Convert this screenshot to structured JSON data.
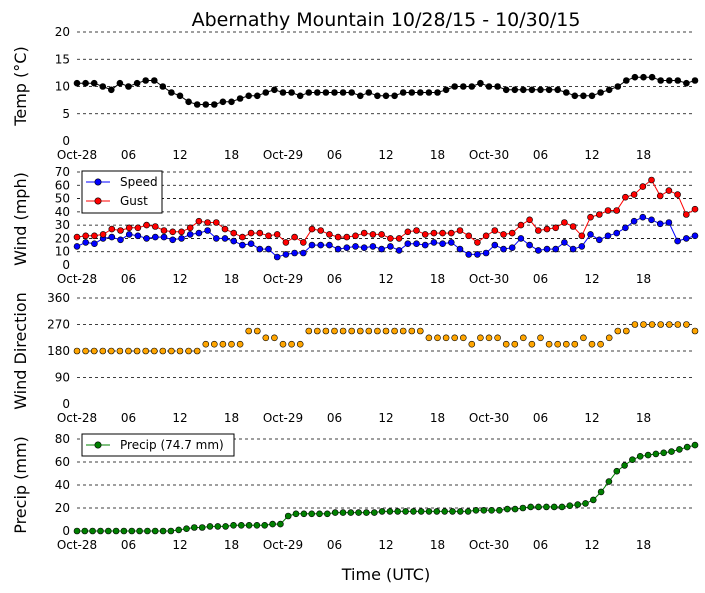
{
  "title": "Abernathy Mountain 10/28/15 - 10/30/15",
  "xlabel": "Time (UTC)",
  "x_tick_labels": [
    "Oct-28",
    "06",
    "12",
    "18",
    "Oct-29",
    "06",
    "12",
    "18",
    "Oct-30",
    "06",
    "12",
    "18"
  ],
  "x_tick_hours": [
    0,
    6,
    12,
    18,
    24,
    30,
    36,
    42,
    48,
    54,
    60,
    66
  ],
  "x_range_hours": [
    0,
    72
  ],
  "colors": {
    "temp": "#000000",
    "speed": "#0000ff",
    "gust": "#ff0000",
    "direction": "#ffa500",
    "precip": "#008000"
  },
  "chart_data": [
    {
      "type": "line",
      "name": "temp",
      "ylabel": "Temp (°C)",
      "ylim": [
        0,
        20
      ],
      "yticks": [
        "0",
        "5",
        "10",
        "15",
        "20"
      ],
      "series": [
        {
          "name": "Temp",
          "color": "#000000",
          "values": [
            10.6,
            10.6,
            10.6,
            10.0,
            9.4,
            10.6,
            10.0,
            10.6,
            11.1,
            11.1,
            10.0,
            8.9,
            8.3,
            7.2,
            6.7,
            6.7,
            6.7,
            7.2,
            7.2,
            7.8,
            8.3,
            8.3,
            8.9,
            9.4,
            8.9,
            8.9,
            8.3,
            8.9,
            8.9,
            8.9,
            8.9,
            8.9,
            8.9,
            8.3,
            8.9,
            8.3,
            8.3,
            8.3,
            8.9,
            8.9,
            8.9,
            8.9,
            8.9,
            9.4,
            10.0,
            10.0,
            10.0,
            10.6,
            10.0,
            10.0,
            9.4,
            9.4,
            9.4,
            9.4,
            9.4,
            9.4,
            9.4,
            8.9,
            8.3,
            8.3,
            8.3,
            8.9,
            9.4,
            10.0,
            11.1,
            11.7,
            11.7,
            11.7,
            11.1,
            11.1,
            11.1,
            10.6,
            11.1
          ]
        }
      ]
    },
    {
      "type": "line",
      "name": "wind",
      "ylabel": "Wind (mph)",
      "ylim": [
        0,
        70
      ],
      "yticks": [
        "0",
        "10",
        "20",
        "30",
        "40",
        "50",
        "60",
        "70"
      ],
      "legend_location": "upper-left",
      "series": [
        {
          "name": "Speed",
          "color": "#0000ff",
          "values": [
            14,
            17,
            16,
            20,
            21,
            19,
            23,
            22,
            20,
            21,
            21,
            19,
            20,
            23,
            24,
            26,
            20,
            20,
            18,
            15,
            16,
            12,
            12,
            6,
            8,
            9,
            9,
            15,
            15,
            15,
            12,
            13,
            14,
            13,
            14,
            12,
            14,
            11,
            16,
            16,
            15,
            17,
            16,
            17,
            12,
            8,
            8,
            9,
            15,
            12,
            13,
            20,
            15,
            11,
            12,
            12,
            17,
            12,
            14,
            23,
            19,
            22,
            24,
            28,
            33,
            36,
            34,
            31,
            32,
            18,
            20,
            22
          ]
        },
        {
          "name": "Gust",
          "color": "#ff0000",
          "values": [
            21,
            22,
            22,
            23,
            27,
            26,
            28,
            28,
            30,
            29,
            26,
            25,
            25,
            28,
            33,
            32,
            32,
            27,
            24,
            21,
            24,
            24,
            22,
            23,
            17,
            21,
            17,
            27,
            26,
            23,
            21,
            21,
            22,
            24,
            23,
            23,
            20,
            20,
            25,
            26,
            23,
            24,
            24,
            24,
            26,
            22,
            17,
            22,
            26,
            23,
            24,
            30,
            34,
            26,
            27,
            28,
            32,
            29,
            22,
            36,
            38,
            41,
            41,
            51,
            53,
            59,
            64,
            52,
            56,
            53,
            38,
            42
          ]
        }
      ]
    },
    {
      "type": "scatter",
      "name": "direction",
      "ylabel": "Wind Direction",
      "ylim": [
        0,
        360
      ],
      "yticks": [
        "0",
        "90",
        "180",
        "270",
        "360"
      ],
      "series": [
        {
          "name": "Direction",
          "color": "#ffa500",
          "values": [
            180,
            180,
            180,
            180,
            180,
            180,
            180,
            180,
            180,
            180,
            180,
            180,
            180,
            180,
            180,
            203,
            203,
            203,
            203,
            203,
            248,
            248,
            225,
            225,
            203,
            203,
            203,
            248,
            248,
            248,
            248,
            248,
            248,
            248,
            248,
            248,
            248,
            248,
            248,
            248,
            248,
            225,
            225,
            225,
            225,
            225,
            203,
            225,
            225,
            225,
            203,
            203,
            225,
            203,
            225,
            203,
            203,
            203,
            203,
            225,
            203,
            203,
            225,
            248,
            248,
            270,
            270,
            270,
            270,
            270,
            270,
            270,
            248
          ]
        }
      ]
    },
    {
      "type": "line",
      "name": "precip",
      "ylabel": "Precip (mm)",
      "ylim": [
        0,
        80
      ],
      "yticks": [
        "0",
        "20",
        "40",
        "60",
        "80"
      ],
      "legend_location": "upper-left",
      "series": [
        {
          "name": "Precip (74.7 mm)",
          "color": "#008000",
          "values": [
            0,
            0,
            0,
            0,
            0,
            0,
            0,
            0,
            0,
            0,
            0,
            0,
            0,
            1,
            2,
            3,
            3,
            4,
            4,
            4,
            5,
            5,
            5,
            5,
            5,
            6,
            6,
            13,
            15,
            15,
            15,
            15,
            15,
            16,
            16,
            16,
            16,
            16,
            16,
            17,
            17,
            17,
            17,
            17,
            17,
            17,
            17,
            17,
            17,
            17,
            17,
            18,
            18,
            18,
            18,
            19,
            19,
            20,
            21,
            21,
            21,
            21,
            21,
            22,
            23,
            24,
            27,
            34,
            43,
            52,
            57,
            62,
            65,
            66,
            67,
            68,
            69,
            71,
            73,
            74.7
          ]
        }
      ]
    }
  ]
}
